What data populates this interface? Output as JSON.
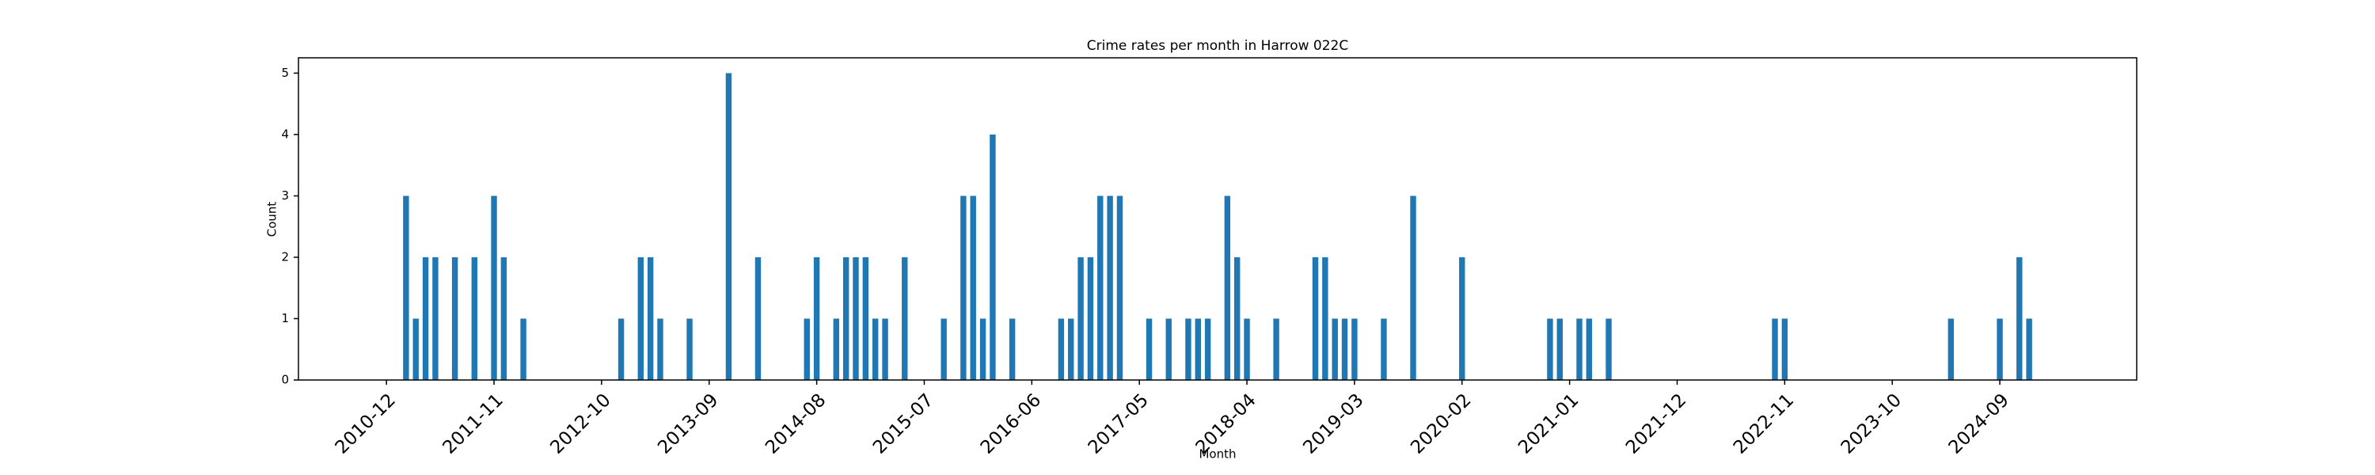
{
  "chart_data": {
    "type": "bar",
    "title": "Crime rates per month in Harrow 022C",
    "x_label": "Month",
    "y_label": "Count",
    "color": "#1f77b4",
    "grid": false,
    "x": [
      "2011-02",
      "2011-03",
      "2011-04",
      "2011-05",
      "2011-07",
      "2011-09",
      "2011-11",
      "2011-12",
      "2012-02",
      "2012-12",
      "2013-02",
      "2013-03",
      "2013-04",
      "2013-07",
      "2013-11",
      "2014-02",
      "2014-07",
      "2014-08",
      "2014-10",
      "2014-11",
      "2014-12",
      "2015-01",
      "2015-02",
      "2015-03",
      "2015-05",
      "2015-09",
      "2015-11",
      "2015-12",
      "2016-01",
      "2016-02",
      "2016-04",
      "2016-09",
      "2016-10",
      "2016-11",
      "2016-12",
      "2017-01",
      "2017-02",
      "2017-03",
      "2017-06",
      "2017-08",
      "2017-10",
      "2017-11",
      "2017-12",
      "2018-02",
      "2018-03",
      "2018-04",
      "2018-07",
      "2018-11",
      "2018-12",
      "2019-01",
      "2019-02",
      "2019-03",
      "2019-06",
      "2019-09",
      "2020-02",
      "2020-11",
      "2020-12",
      "2021-02",
      "2021-03",
      "2021-05",
      "2022-10",
      "2022-11",
      "2024-04",
      "2024-09",
      "2024-11",
      "2024-12"
    ],
    "values": [
      3,
      1,
      2,
      2,
      2,
      2,
      3,
      2,
      1,
      1,
      2,
      2,
      1,
      1,
      5,
      2,
      1,
      2,
      1,
      2,
      2,
      2,
      1,
      1,
      2,
      1,
      3,
      3,
      1,
      4,
      1,
      1,
      1,
      2,
      2,
      3,
      3,
      3,
      1,
      1,
      1,
      1,
      1,
      3,
      2,
      1,
      1,
      2,
      2,
      1,
      1,
      1,
      1,
      3,
      2,
      1,
      1,
      1,
      1,
      1,
      1,
      1,
      1,
      1,
      2,
      1
    ],
    "xlim": [
      "2010-03",
      "2025-11"
    ],
    "xticks": [
      "2010-12",
      "2011-11",
      "2012-10",
      "2013-09",
      "2014-08",
      "2015-07",
      "2016-06",
      "2017-05",
      "2018-04",
      "2019-03",
      "2020-02",
      "2021-01",
      "2021-12",
      "2022-11",
      "2023-10",
      "2024-09"
    ],
    "ylim": [
      0,
      5.25
    ],
    "yticks": [
      0,
      1,
      2,
      3,
      4,
      5
    ]
  }
}
